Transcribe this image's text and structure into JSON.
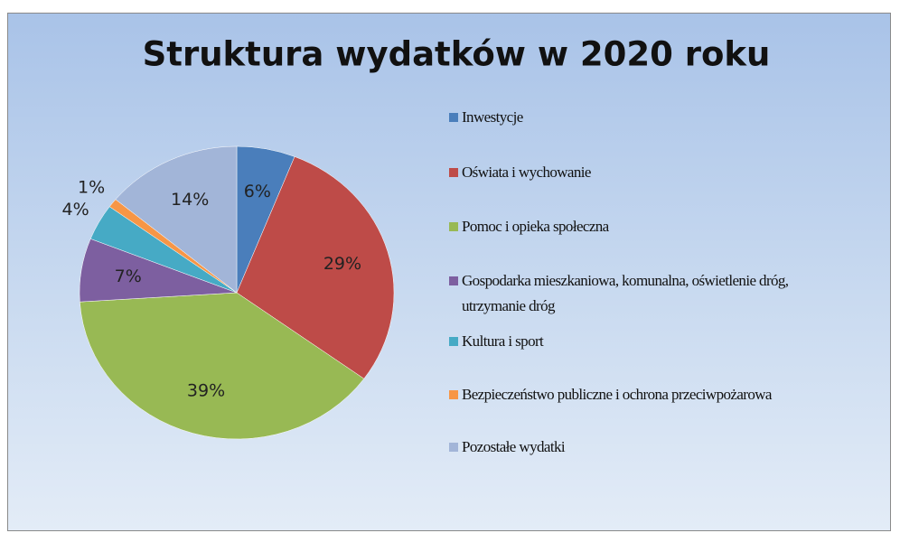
{
  "chart_data": {
    "type": "pie",
    "title": "Struktura wydatków w 2020 roku",
    "categories": [
      "Inwestycje",
      "Oświata i wychowanie",
      "Pomoc i opieka społeczna",
      "Gospodarka mieszkaniowa, komunalna, oświetlenie dróg, utrzymanie dróg",
      "Kultura i sport",
      "Bezpieczeństwo publiczne i ochrona przeciwpożarowa",
      "Pozostałe wydatki"
    ],
    "values": [
      6,
      29,
      39,
      7,
      4,
      1,
      14
    ],
    "value_labels": [
      "6%",
      "29%",
      "39%",
      "7%",
      "4%",
      "1%",
      "14%"
    ],
    "colors": [
      "#4a7ebb",
      "#be4b48",
      "#98b954",
      "#7d5fa0",
      "#46aac5",
      "#f79646",
      "#a2b5d8"
    ],
    "legend": "right"
  }
}
